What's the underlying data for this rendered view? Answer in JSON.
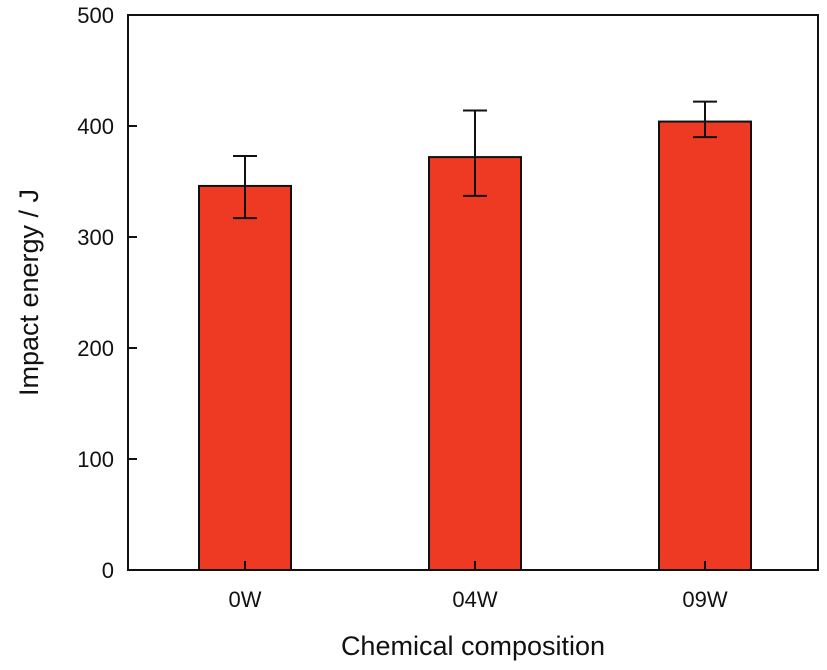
{
  "chart_data": {
    "type": "bar",
    "title": "",
    "xlabel": "Chemical composition",
    "ylabel": "Impact energy / J",
    "categories": [
      "0W",
      "04W",
      "09W"
    ],
    "values": [
      346,
      372,
      404
    ],
    "error_bars": [
      {
        "low": 317,
        "high": 373
      },
      {
        "low": 337,
        "high": 414
      },
      {
        "low": 390,
        "high": 422
      }
    ],
    "ylim": [
      0,
      500
    ],
    "yticks": [
      0,
      100,
      200,
      300,
      400,
      500
    ],
    "ytick_labels": [
      "0",
      "100",
      "200",
      "300",
      "400",
      "500"
    ],
    "grid": false,
    "legend": "none",
    "bar_color": "#ee3a22"
  }
}
